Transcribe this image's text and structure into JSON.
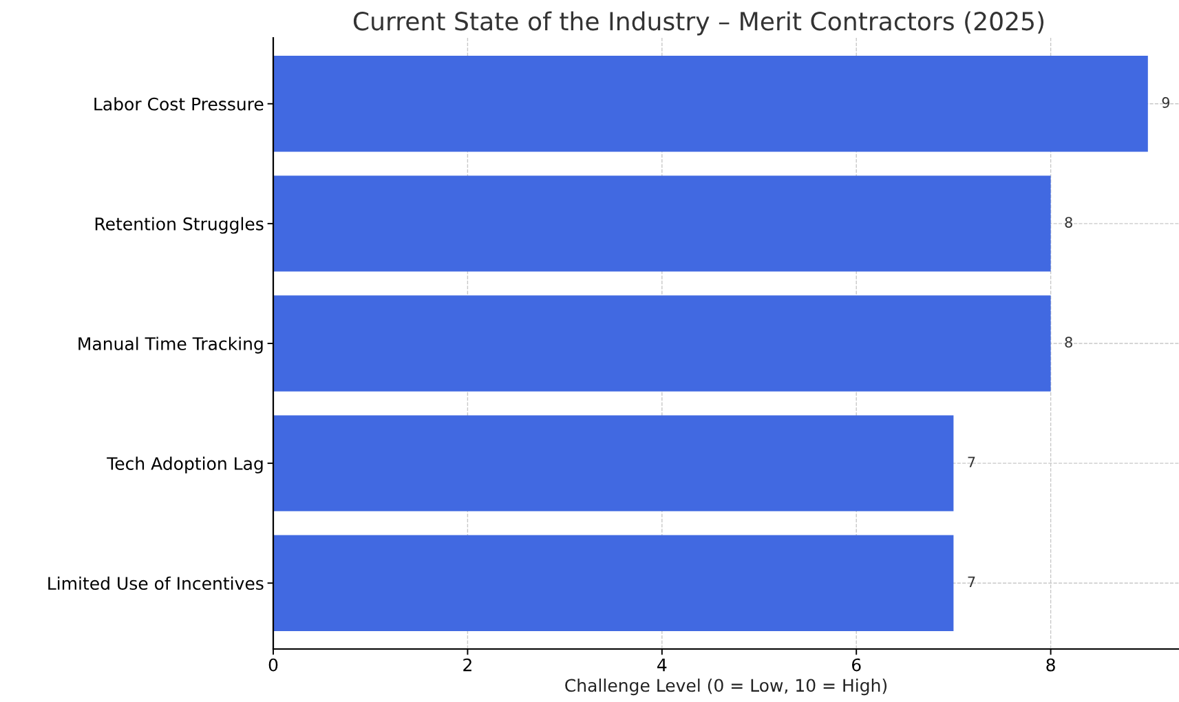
{
  "chart_data": {
    "type": "bar",
    "orientation": "horizontal",
    "title": "Current State of the Industry – Merit Contractors (2025)",
    "xlabel": "Challenge Level (0 = Low, 10 = High)",
    "categories": [
      "Labor Cost Pressure",
      "Retention Struggles",
      "Manual Time Tracking",
      "Tech Adoption Lag",
      "Limited Use of Incentives"
    ],
    "values": [
      9,
      8,
      8,
      7,
      7
    ],
    "color": "#4169e1",
    "xlim": [
      0,
      9.32
    ],
    "xticks": [
      0,
      2,
      4,
      6,
      8
    ],
    "grid": true,
    "data_labels": true
  }
}
